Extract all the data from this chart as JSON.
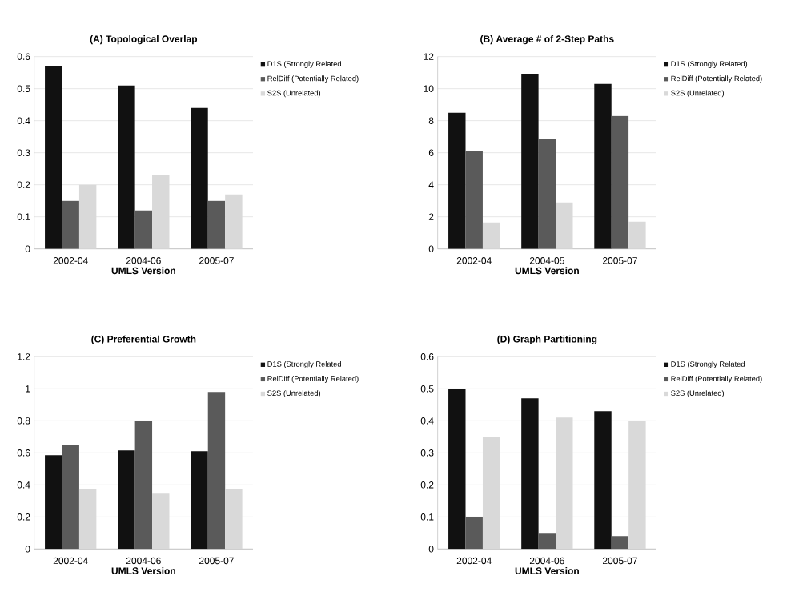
{
  "chart_data": [
    {
      "type": "bar",
      "title": "(A) Topological Overlap",
      "xlabel": "UMLS Version",
      "categories": [
        "2002-04",
        "2004-06",
        "2005-07"
      ],
      "ylim": [
        0,
        0.6
      ],
      "yticks": [
        0,
        0.1,
        0.2,
        0.3,
        0.4,
        0.5,
        0.6
      ],
      "grid": "y",
      "legend": "top right",
      "series": [
        {
          "name": "D1S (Strongly Related",
          "color": "#111111",
          "values": [
            0.57,
            0.51,
            0.44
          ]
        },
        {
          "name": "RelDiff (Potentially Related)",
          "color": "#5a5a5a",
          "values": [
            0.15,
            0.12,
            0.15
          ]
        },
        {
          "name": "S2S (Unrelated)",
          "color": "#d9d9d9",
          "values": [
            0.2,
            0.23,
            0.17
          ]
        }
      ]
    },
    {
      "type": "bar",
      "title": "(B) Average # of 2-Step Paths",
      "xlabel": "UMLS Version",
      "categories": [
        "2002-04",
        "2004-05",
        "2005-07"
      ],
      "ylim": [
        0,
        12
      ],
      "yticks": [
        0,
        2,
        4,
        6,
        8,
        10,
        12
      ],
      "grid": "y",
      "legend": "top right",
      "series": [
        {
          "name": "D1S (Strongly Related)",
          "color": "#111111",
          "values": [
            8.5,
            10.9,
            10.3
          ]
        },
        {
          "name": "RelDiff (Potentially Related)",
          "color": "#5a5a5a",
          "values": [
            6.1,
            6.85,
            8.3
          ]
        },
        {
          "name": "S2S (Unrelated)",
          "color": "#d9d9d9",
          "values": [
            1.65,
            2.9,
            1.7
          ]
        }
      ]
    },
    {
      "type": "bar",
      "title": "(C) Preferential Growth",
      "xlabel": "UMLS Version",
      "categories": [
        "2002-04",
        "2004-06",
        "2005-07"
      ],
      "ylim": [
        0,
        1.2
      ],
      "yticks": [
        0,
        0.2,
        0.4,
        0.6,
        0.8,
        1,
        1.2
      ],
      "grid": "y",
      "legend": "top right",
      "series": [
        {
          "name": "D1S (Strongly Related",
          "color": "#111111",
          "values": [
            0.585,
            0.615,
            0.61
          ]
        },
        {
          "name": "RelDiff (Potentially Related)",
          "color": "#5a5a5a",
          "values": [
            0.65,
            0.8,
            0.98
          ]
        },
        {
          "name": "S2S (Unrelated)",
          "color": "#d9d9d9",
          "values": [
            0.375,
            0.345,
            0.375
          ]
        }
      ]
    },
    {
      "type": "bar",
      "title": "(D) Graph Partitioning",
      "xlabel": "UMLS Version",
      "categories": [
        "2002-04",
        "2004-06",
        "2005-07"
      ],
      "ylim": [
        0,
        0.6
      ],
      "yticks": [
        0,
        0.1,
        0.2,
        0.3,
        0.4,
        0.5,
        0.6
      ],
      "grid": "y",
      "legend": "top right",
      "series": [
        {
          "name": "D1S (Strongly Related",
          "color": "#111111",
          "values": [
            0.5,
            0.47,
            0.43
          ]
        },
        {
          "name": "RelDiff (Potentially Related)",
          "color": "#5a5a5a",
          "values": [
            0.1,
            0.05,
            0.04
          ]
        },
        {
          "name": "S2S (Unrelated)",
          "color": "#d9d9d9",
          "values": [
            0.35,
            0.41,
            0.4
          ]
        }
      ]
    }
  ]
}
